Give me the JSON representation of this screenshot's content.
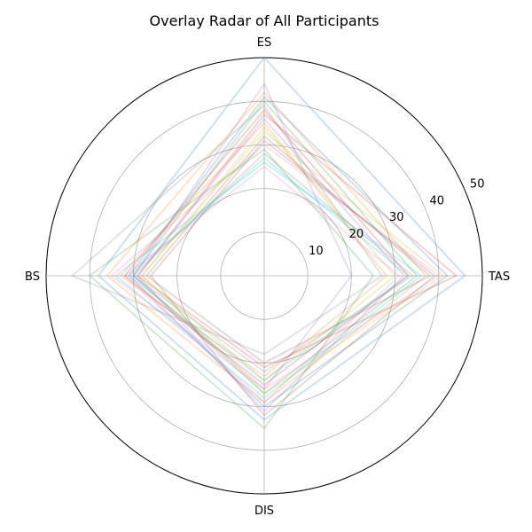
{
  "chart_data": {
    "type": "radar",
    "title": "Overlay Radar of All Participants",
    "axes": [
      "ES",
      "TAS",
      "DIS",
      "BS"
    ],
    "rlim": [
      0,
      50
    ],
    "r_ticks": [
      10,
      20,
      30,
      40,
      50
    ],
    "r_tick_labels": [
      "10",
      "20",
      "30",
      "40",
      "50"
    ],
    "grid": true,
    "line_alpha": 0.2,
    "colors": [
      "#1f77b4",
      "#ff7f0e",
      "#2ca02c",
      "#d62728",
      "#9467bd",
      "#8c564b",
      "#e377c2",
      "#7f7f7f",
      "#bcbd22",
      "#17becf"
    ],
    "series": [
      {
        "values": [
          50,
          46,
          33,
          38
        ]
      },
      {
        "values": [
          42,
          37,
          29,
          36
        ]
      },
      {
        "values": [
          40,
          35,
          27,
          30
        ]
      },
      {
        "values": [
          38,
          33,
          25,
          32
        ]
      },
      {
        "values": [
          36,
          32,
          31,
          29
        ]
      },
      {
        "values": [
          32,
          38,
          20,
          27
        ]
      },
      {
        "values": [
          30,
          40,
          26,
          35
        ]
      },
      {
        "values": [
          28,
          34,
          22,
          30
        ]
      },
      {
        "values": [
          34,
          30,
          24,
          28
        ]
      },
      {
        "values": [
          26,
          36,
          28,
          34
        ]
      },
      {
        "values": [
          41,
          42,
          30,
          31
        ]
      },
      {
        "values": [
          35,
          28,
          23,
          33
        ]
      },
      {
        "values": [
          29,
          25,
          35,
          40
        ]
      },
      {
        "values": [
          37,
          44,
          21,
          29
        ]
      },
      {
        "values": [
          44,
          20,
          26,
          30
        ]
      },
      {
        "values": [
          31,
          39,
          32,
          26
        ]
      },
      {
        "values": [
          25,
          31,
          29,
          32
        ]
      },
      {
        "values": [
          39,
          27,
          18,
          44
        ]
      },
      {
        "values": [
          33,
          41,
          27,
          28
        ]
      },
      {
        "values": [
          27,
          33,
          24,
          31
        ]
      }
    ]
  }
}
